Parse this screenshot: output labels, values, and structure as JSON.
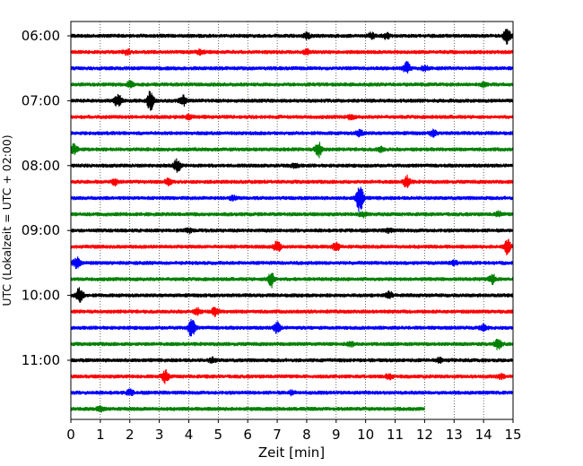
{
  "chart_data": {
    "type": "line",
    "title": "",
    "xlabel": "Zeit  [min]",
    "ylabel": "UTC (Lokalzeit = UTC + 02:00)",
    "xlim": [
      0,
      15
    ],
    "x_ticks": [
      "0",
      "1",
      "2",
      "3",
      "4",
      "5",
      "6",
      "7",
      "8",
      "9",
      "10",
      "11",
      "12",
      "13",
      "14",
      "15"
    ],
    "y_ticks": [
      "06:00",
      "07:00",
      "08:00",
      "09:00",
      "10:00",
      "11:00"
    ],
    "grid": "vertical dotted",
    "trace_interval_min": 15,
    "trace_colors_cycle": [
      "#000000",
      "#ff0000",
      "#0000ff",
      "#008000"
    ],
    "series": [
      {
        "start": "06:00",
        "color": "#000000",
        "end_min": 15,
        "events": [
          [
            8.0,
            0.4
          ],
          [
            10.2,
            0.45
          ],
          [
            10.7,
            0.5
          ],
          [
            14.8,
            1.2
          ]
        ]
      },
      {
        "start": "06:15",
        "color": "#ff0000",
        "end_min": 15,
        "events": [
          [
            1.9,
            0.4
          ],
          [
            4.4,
            0.35
          ],
          [
            8.0,
            0.3
          ]
        ]
      },
      {
        "start": "06:30",
        "color": "#0000ff",
        "end_min": 15,
        "events": [
          [
            11.4,
            0.9
          ],
          [
            12.0,
            0.35
          ]
        ]
      },
      {
        "start": "06:45",
        "color": "#008000",
        "end_min": 15,
        "events": [
          [
            2.0,
            0.4
          ],
          [
            14.0,
            0.3
          ]
        ]
      },
      {
        "start": "07:00",
        "color": "#000000",
        "end_min": 15,
        "events": [
          [
            1.6,
            1.0
          ],
          [
            2.7,
            1.5
          ],
          [
            3.8,
            0.8
          ]
        ]
      },
      {
        "start": "07:15",
        "color": "#ff0000",
        "end_min": 15,
        "events": [
          [
            4.0,
            0.3
          ],
          [
            9.5,
            0.3
          ]
        ]
      },
      {
        "start": "07:30",
        "color": "#0000ff",
        "end_min": 15,
        "events": [
          [
            9.8,
            0.5
          ],
          [
            12.3,
            0.45
          ]
        ]
      },
      {
        "start": "07:45",
        "color": "#008000",
        "end_min": 15,
        "events": [
          [
            0.1,
            0.7
          ],
          [
            8.4,
            1.2
          ],
          [
            10.5,
            0.35
          ]
        ]
      },
      {
        "start": "08:00",
        "color": "#000000",
        "end_min": 15,
        "events": [
          [
            3.6,
            1.0
          ],
          [
            7.6,
            0.35
          ]
        ]
      },
      {
        "start": "08:15",
        "color": "#ff0000",
        "end_min": 15,
        "events": [
          [
            1.5,
            0.45
          ],
          [
            3.3,
            0.45
          ],
          [
            11.4,
            0.9
          ]
        ]
      },
      {
        "start": "08:30",
        "color": "#0000ff",
        "end_min": 15,
        "events": [
          [
            9.8,
            2.4
          ],
          [
            5.5,
            0.3
          ]
        ]
      },
      {
        "start": "08:45",
        "color": "#008000",
        "end_min": 15,
        "events": [
          [
            9.9,
            0.4
          ],
          [
            14.5,
            0.3
          ]
        ]
      },
      {
        "start": "09:00",
        "color": "#000000",
        "end_min": 15,
        "events": [
          [
            4.0,
            0.3
          ],
          [
            10.8,
            0.3
          ]
        ]
      },
      {
        "start": "09:15",
        "color": "#ff0000",
        "end_min": 15,
        "events": [
          [
            7.0,
            0.8
          ],
          [
            9.0,
            0.6
          ],
          [
            14.8,
            1.2
          ]
        ]
      },
      {
        "start": "09:30",
        "color": "#0000ff",
        "end_min": 15,
        "events": [
          [
            0.2,
            0.8
          ],
          [
            13.0,
            0.3
          ]
        ]
      },
      {
        "start": "09:45",
        "color": "#008000",
        "end_min": 15,
        "events": [
          [
            6.8,
            1.2
          ],
          [
            14.3,
            0.7
          ]
        ]
      },
      {
        "start": "10:00",
        "color": "#000000",
        "end_min": 15,
        "events": [
          [
            0.3,
            1.2
          ],
          [
            10.8,
            0.5
          ]
        ]
      },
      {
        "start": "10:15",
        "color": "#ff0000",
        "end_min": 15,
        "events": [
          [
            4.9,
            0.6
          ],
          [
            4.3,
            0.4
          ]
        ]
      },
      {
        "start": "10:30",
        "color": "#0000ff",
        "end_min": 15,
        "events": [
          [
            4.1,
            1.4
          ],
          [
            7.0,
            0.8
          ],
          [
            14.0,
            0.4
          ]
        ]
      },
      {
        "start": "10:45",
        "color": "#008000",
        "end_min": 15,
        "events": [
          [
            14.5,
            0.9
          ],
          [
            9.5,
            0.3
          ]
        ]
      },
      {
        "start": "11:00",
        "color": "#000000",
        "end_min": 15,
        "events": [
          [
            4.8,
            0.35
          ],
          [
            12.5,
            0.35
          ]
        ]
      },
      {
        "start": "11:15",
        "color": "#ff0000",
        "end_min": 15,
        "events": [
          [
            3.2,
            0.9
          ],
          [
            10.8,
            0.4
          ],
          [
            14.6,
            0.35
          ]
        ]
      },
      {
        "start": "11:30",
        "color": "#0000ff",
        "end_min": 15,
        "events": [
          [
            2.0,
            0.4
          ],
          [
            7.5,
            0.3
          ]
        ]
      },
      {
        "start": "11:45",
        "color": "#008000",
        "end_min": 12,
        "events": [
          [
            1.0,
            0.3
          ]
        ]
      }
    ]
  }
}
